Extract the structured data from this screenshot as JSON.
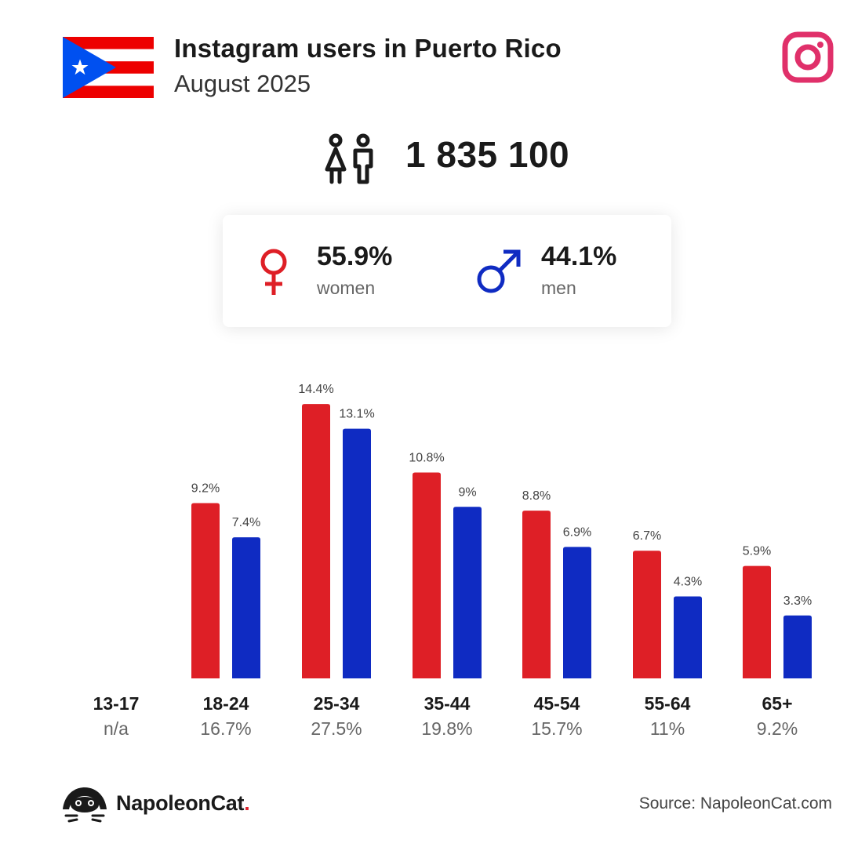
{
  "header": {
    "title": "Instagram users in Puerto Rico",
    "subtitle": "August 2025",
    "flag": "puerto-rico-flag",
    "platform_icon": "instagram-icon"
  },
  "total_users": "1 835 100",
  "gender": {
    "women_pct": "55.9%",
    "women_label": "women",
    "men_pct": "44.1%",
    "men_label": "men"
  },
  "colors": {
    "women": "#de1f26",
    "men": "#0f2bc2",
    "instagram": "#e0306a",
    "flag_red": "#ed0000",
    "flag_blue": "#0050f0"
  },
  "chart_data": {
    "type": "bar",
    "categories": [
      "13-17",
      "18-24",
      "25-34",
      "35-44",
      "45-54",
      "55-64",
      "65+"
    ],
    "category_totals": [
      "n/a",
      "16.7%",
      "27.5%",
      "19.8%",
      "15.7%",
      "11%",
      "9.2%"
    ],
    "series": [
      {
        "values": [
          null,
          9.2,
          14.4,
          10.8,
          8.8,
          6.7,
          5.9
        ],
        "labels": [
          "",
          "9.2%",
          "14.4%",
          "10.8%",
          "8.8%",
          "6.7%",
          "5.9%"
        ]
      },
      {
        "values": [
          null,
          7.4,
          13.1,
          9,
          6.9,
          4.3,
          3.3
        ],
        "labels": [
          "",
          "7.4%",
          "13.1%",
          "9%",
          "6.9%",
          "4.3%",
          "3.3%"
        ]
      }
    ]
  },
  "footer": {
    "brand": "NapoleonCat",
    "brand_dot": ".",
    "source": "Source: NapoleonCat.com"
  }
}
